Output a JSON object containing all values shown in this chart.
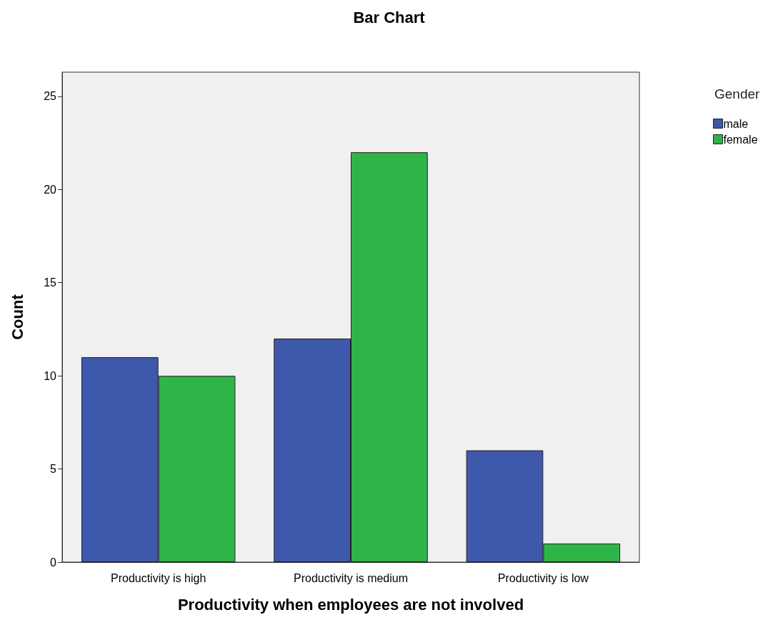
{
  "chart_data": {
    "type": "bar",
    "title": "Bar Chart",
    "xlabel": "Productivity when employees are not involved",
    "ylabel": "Count",
    "legend_title": "Gender",
    "categories": [
      "Productivity is high",
      "Productivity is medium",
      "Productivity is low"
    ],
    "series": [
      {
        "name": "male",
        "color": "#3e58ac",
        "values": [
          11,
          12,
          6
        ]
      },
      {
        "name": "female",
        "color": "#2fb547",
        "values": [
          10,
          22,
          1
        ]
      }
    ],
    "ylim": [
      0,
      26.3
    ],
    "yticks": [
      0,
      5,
      10,
      15,
      20,
      25
    ],
    "grid": false,
    "legend": "top right"
  }
}
